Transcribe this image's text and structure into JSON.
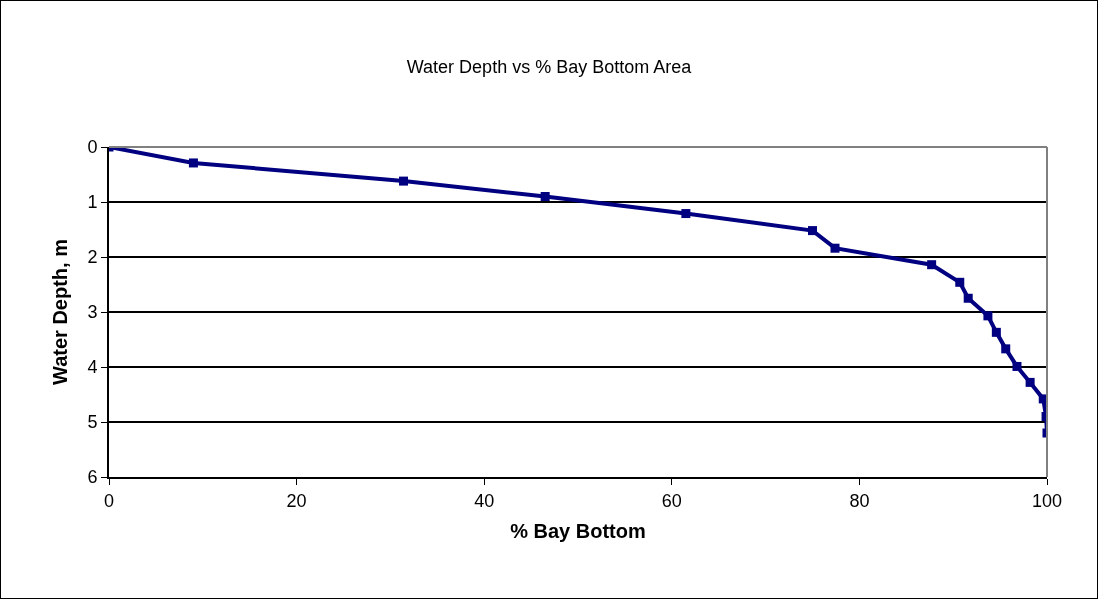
{
  "chart_data": {
    "type": "line",
    "title": "Water Depth vs % Bay Bottom Area",
    "xlabel": "% Bay Bottom",
    "ylabel": "Water Depth, m",
    "x": [
      0,
      9.0,
      31.4,
      46.5,
      61.5,
      75.0,
      77.4,
      87.7,
      90.7,
      91.6,
      93.7,
      94.6,
      95.6,
      96.8,
      98.2,
      99.6,
      99.9,
      100
    ],
    "series": [
      {
        "color": "#000080",
        "values": [
          0,
          0.29,
          0.62,
          0.9,
          1.21,
          1.52,
          1.84,
          2.14,
          2.46,
          2.75,
          3.07,
          3.37,
          3.67,
          3.99,
          4.28,
          4.58,
          4.9,
          5.2
        ]
      }
    ],
    "xlim": [
      0,
      100
    ],
    "xticks": [
      0,
      20,
      40,
      60,
      80,
      100
    ],
    "ylim": [
      6,
      0
    ],
    "yticks": [
      0,
      1,
      2,
      3,
      4,
      5,
      6
    ],
    "grid": "y",
    "marker": "square",
    "line_style": "solid"
  }
}
